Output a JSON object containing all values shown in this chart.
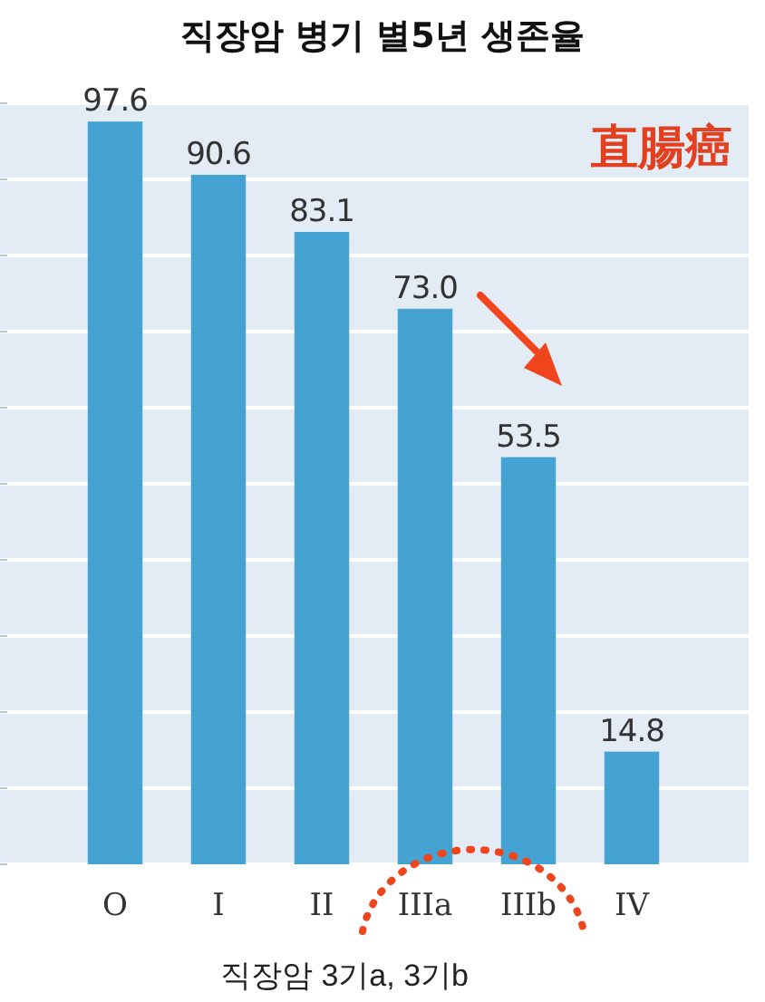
{
  "chart_data": {
    "type": "bar",
    "title": "직장암 병기 별5년 생존율",
    "categories": [
      "O",
      "I",
      "II",
      "IIIa",
      "IIIb",
      "IV"
    ],
    "values": [
      97.6,
      90.6,
      83.1,
      73.0,
      53.5,
      14.8
    ],
    "value_labels": [
      "97.6",
      "90.6",
      "83.1",
      "73.0",
      "53.5",
      "14.8"
    ],
    "color": "#45a3d4",
    "ylim": [
      0,
      100
    ],
    "yticks": [
      {
        "value": 0,
        "label": null
      },
      {
        "value": 10,
        "label": null
      },
      {
        "value": 20,
        "label": null
      },
      {
        "value": 30,
        "label": null
      },
      {
        "value": 40,
        "label": null
      },
      {
        "value": 50,
        "label": null
      },
      {
        "value": 60,
        "label": null
      },
      {
        "value": 70,
        "label": null
      },
      {
        "value": 80,
        "label": null
      },
      {
        "value": 90,
        "label": null
      },
      {
        "value": 100,
        "label": null
      }
    ],
    "grid": "y",
    "tick_labels": "x",
    "annotations": [
      "直腸癌",
      "직장암 3기a, 3기b"
    ]
  }
}
